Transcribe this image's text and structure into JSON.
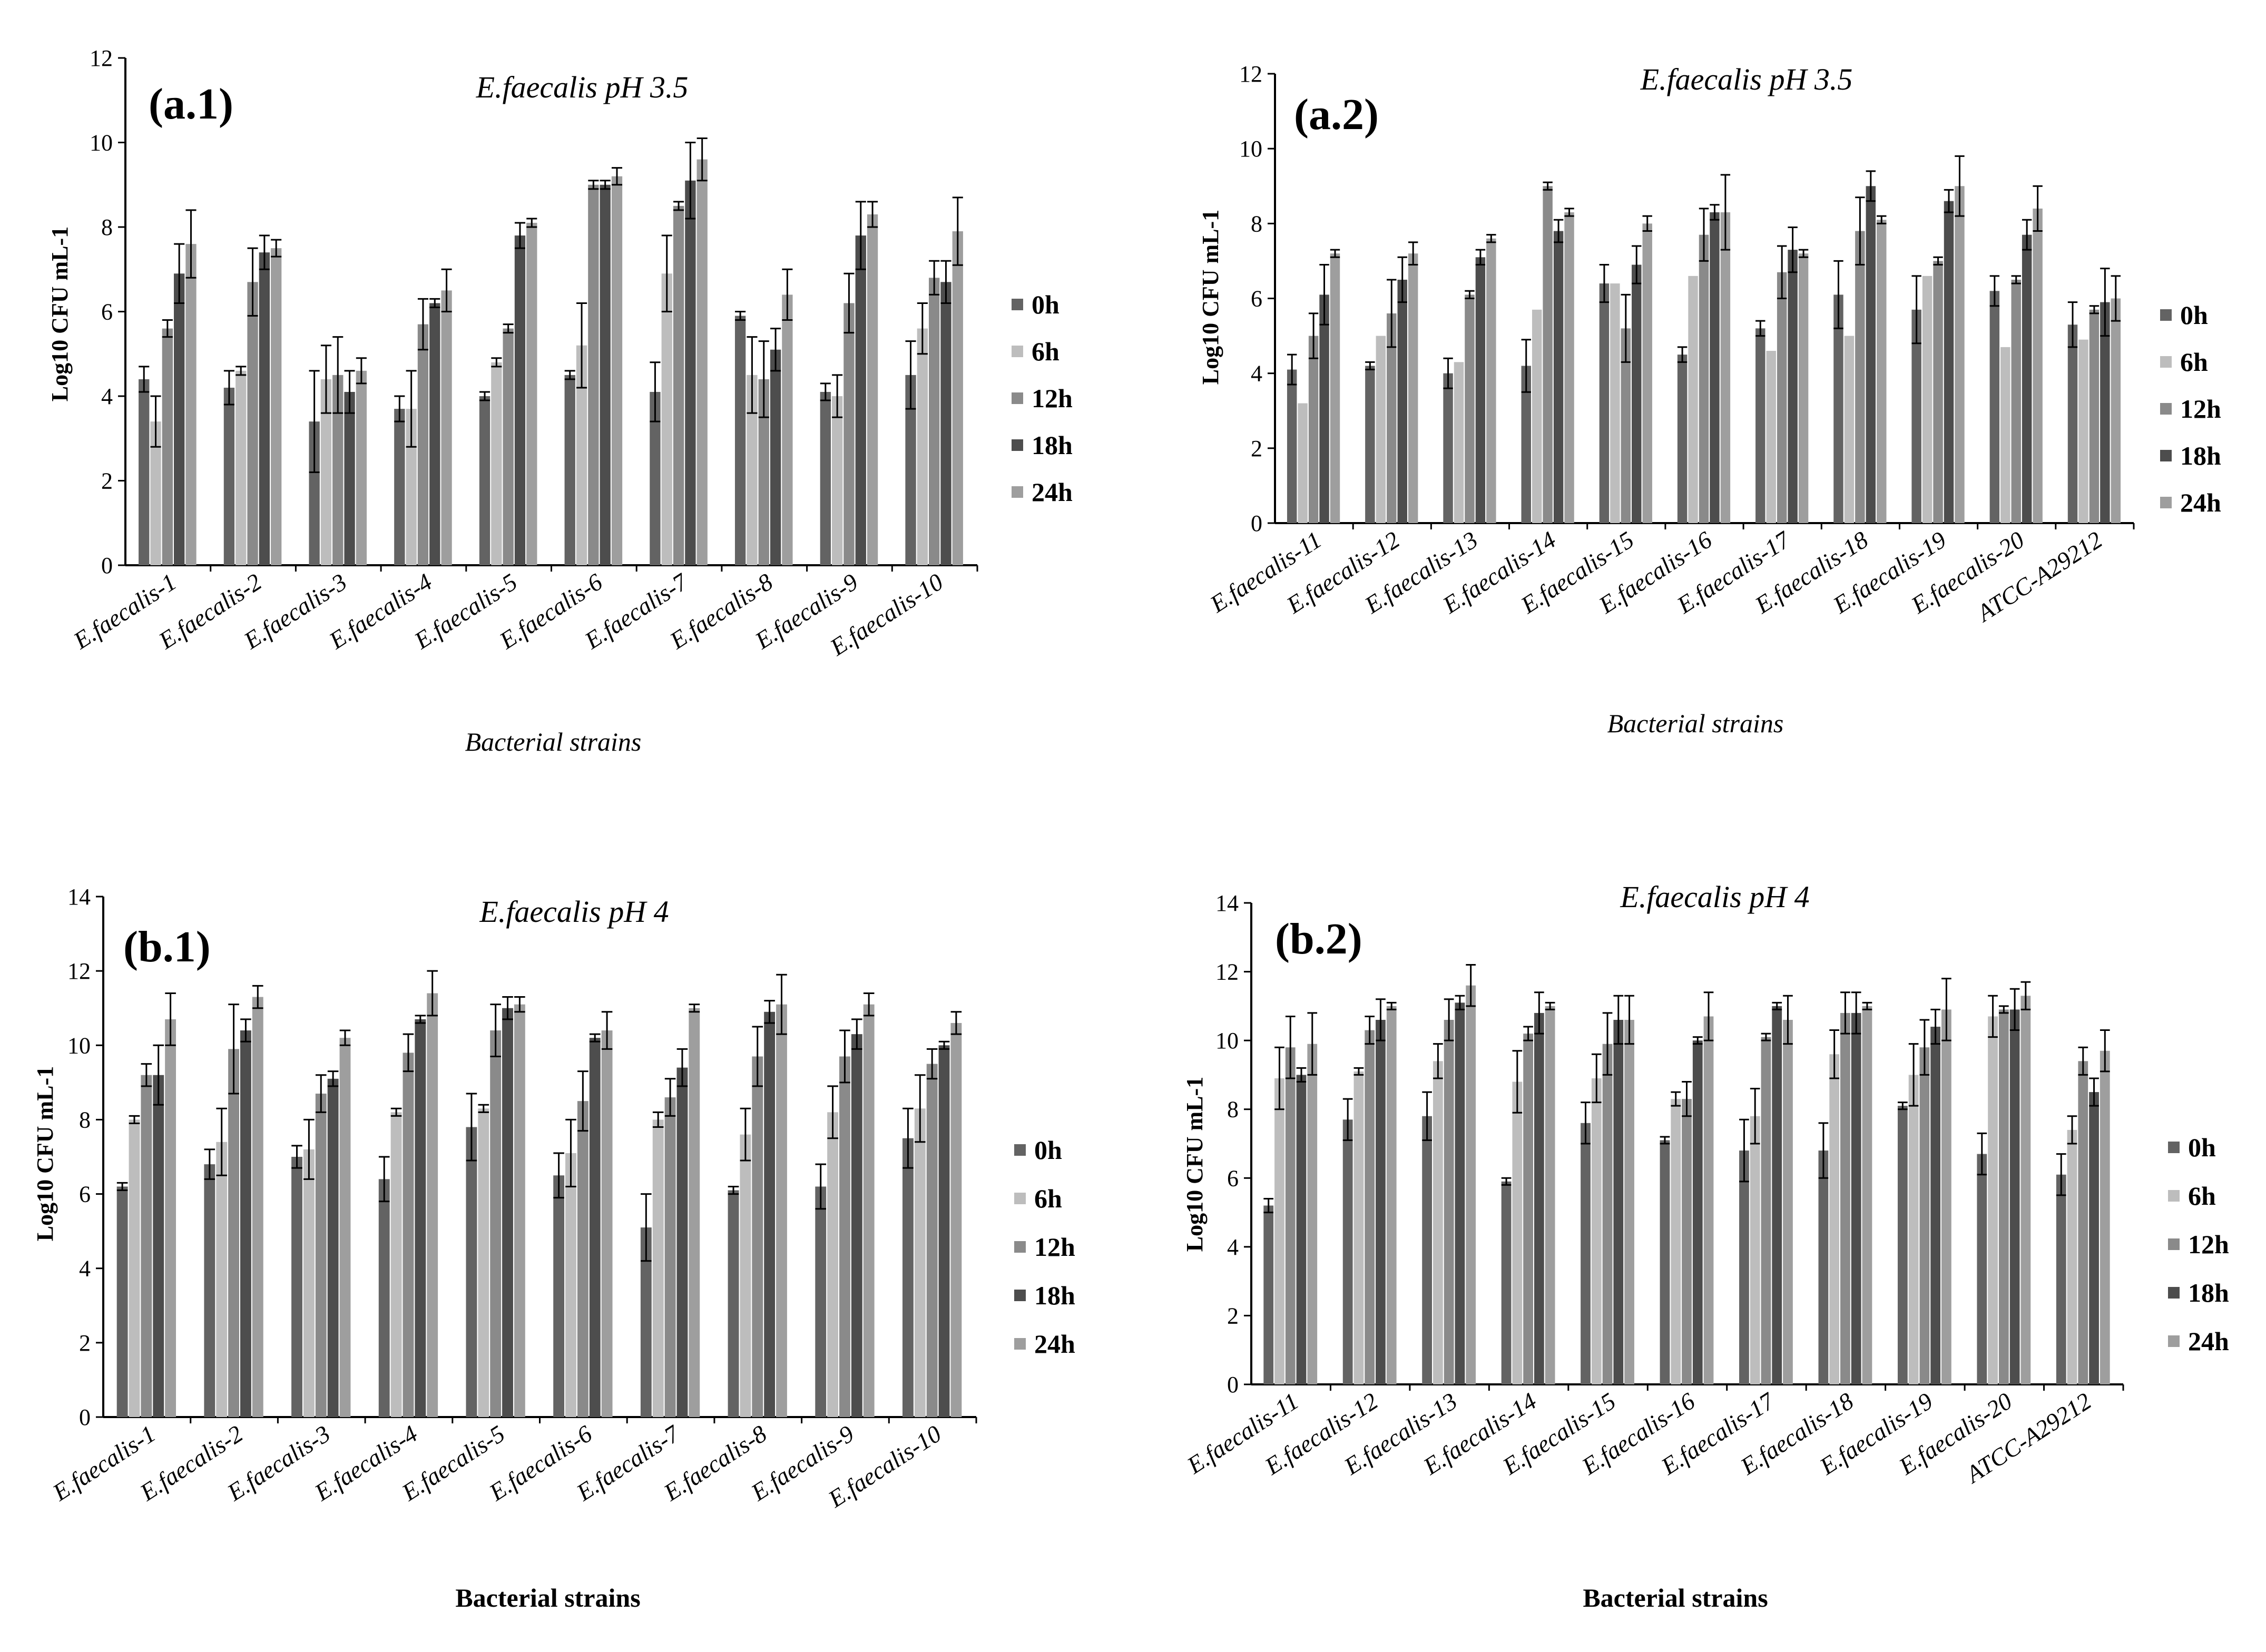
{
  "chart_data": [
    {
      "id": "a1",
      "type": "bar",
      "panel_label": "(a.1)",
      "title": "E.faecalis pH 3.5",
      "xlabel": "Bacterial strains",
      "ylabel": "Log10 CFU mL-1",
      "ylim": [
        0,
        12
      ],
      "yticks": [
        "0",
        "2",
        "4",
        "6",
        "8",
        "10",
        "12"
      ],
      "legend_position": "right",
      "grid": false,
      "categories": [
        "E.faecalis-1",
        "E.faecalis-2",
        "E.faecalis-3",
        "E.faecalis-4",
        "E.faecalis-5",
        "E.faecalis-6",
        "E.faecalis-7",
        "E.faecalis-8",
        "E.faecalis-9",
        "E.faecalis-10"
      ],
      "series": [
        {
          "name": "0h",
          "color": "#636363",
          "values": [
            4.4,
            4.2,
            3.4,
            3.7,
            4.0,
            4.5,
            4.1,
            5.9,
            4.1,
            4.5
          ],
          "errors": [
            0.3,
            0.4,
            1.2,
            0.3,
            0.1,
            0.1,
            0.7,
            0.1,
            0.2,
            0.8
          ]
        },
        {
          "name": "6h",
          "color": "#bdbdbd",
          "values": [
            3.4,
            4.6,
            4.4,
            3.7,
            4.8,
            5.2,
            6.9,
            4.5,
            4.0,
            5.6
          ],
          "errors": [
            0.6,
            0.1,
            0.8,
            0.9,
            0.1,
            1.0,
            0.9,
            0.9,
            0.5,
            0.6
          ]
        },
        {
          "name": "12h",
          "color": "#8a8a8a",
          "values": [
            5.6,
            6.7,
            4.5,
            5.7,
            5.6,
            9.0,
            8.5,
            4.4,
            6.2,
            6.8
          ],
          "errors": [
            0.2,
            0.8,
            0.9,
            0.6,
            0.1,
            0.1,
            0.1,
            0.9,
            0.7,
            0.4
          ]
        },
        {
          "name": "18h",
          "color": "#4d4d4d",
          "values": [
            6.9,
            7.4,
            4.1,
            6.2,
            7.8,
            9.0,
            9.1,
            5.1,
            7.8,
            6.7
          ],
          "errors": [
            0.7,
            0.4,
            0.5,
            0.1,
            0.3,
            0.1,
            0.9,
            0.5,
            0.8,
            0.5
          ]
        },
        {
          "name": "24h",
          "color": "#9e9e9e",
          "values": [
            7.6,
            7.5,
            4.6,
            6.5,
            8.1,
            9.2,
            9.6,
            6.4,
            8.3,
            7.9
          ],
          "errors": [
            0.8,
            0.2,
            0.3,
            0.5,
            0.1,
            0.2,
            0.5,
            0.6,
            0.3,
            0.8
          ]
        }
      ]
    },
    {
      "id": "a2",
      "type": "bar",
      "panel_label": "(a.2)",
      "title": "E.faecalis pH 3.5",
      "xlabel": "Bacterial strains",
      "ylabel": "Log10 CFU mL-1",
      "ylim": [
        0,
        12
      ],
      "yticks": [
        "0",
        "2",
        "4",
        "6",
        "8",
        "10",
        "12"
      ],
      "legend_position": "right",
      "grid": false,
      "categories": [
        "E.faecalis-11",
        "E.faecalis-12",
        "E.faecalis-13",
        "E.faecalis-14",
        "E.faecalis-15",
        "E.faecalis-16",
        "E.faecalis-17",
        "E.faecalis-18",
        "E.faecalis-19",
        "E.faecalis-20",
        "ATCC-A29212"
      ],
      "series": [
        {
          "name": "0h",
          "color": "#636363",
          "values": [
            4.1,
            4.2,
            4.0,
            4.2,
            6.4,
            4.5,
            5.2,
            6.1,
            5.7,
            6.2,
            5.3
          ],
          "errors": [
            0.4,
            0.1,
            0.4,
            0.7,
            0.5,
            0.2,
            0.2,
            0.9,
            0.9,
            0.4,
            0.6
          ]
        },
        {
          "name": "6h",
          "color": "#bdbdbd",
          "values": [
            3.2,
            5.0,
            4.3,
            5.7,
            6.4,
            6.6,
            4.6,
            5.0,
            6.6,
            4.7,
            4.9
          ]
        },
        {
          "name": "12h",
          "color": "#8a8a8a",
          "values": [
            5.0,
            5.6,
            6.1,
            9.0,
            5.2,
            7.7,
            6.7,
            7.8,
            7.0,
            6.5,
            5.7
          ],
          "errors": [
            0.6,
            0.9,
            0.1,
            0.1,
            0.9,
            0.7,
            0.7,
            0.9,
            0.1,
            0.1,
            0.1
          ]
        },
        {
          "name": "18h",
          "color": "#4d4d4d",
          "values": [
            6.1,
            6.5,
            7.1,
            7.8,
            6.9,
            8.3,
            7.3,
            9.0,
            8.6,
            7.7,
            5.9
          ],
          "errors": [
            0.8,
            0.6,
            0.2,
            0.3,
            0.5,
            0.2,
            0.6,
            0.4,
            0.3,
            0.4,
            0.9
          ]
        },
        {
          "name": "24h",
          "color": "#9e9e9e",
          "values": [
            7.2,
            7.2,
            7.6,
            8.3,
            8.0,
            8.3,
            7.2,
            8.1,
            9.0,
            8.4,
            6.0
          ],
          "errors": [
            0.1,
            0.3,
            0.1,
            0.1,
            0.2,
            1.0,
            0.1,
            0.1,
            0.8,
            0.6,
            0.6
          ]
        }
      ]
    },
    {
      "id": "b1",
      "type": "bar",
      "panel_label": "(b.1)",
      "title": "E.faecalis pH 4",
      "xlabel": "Bacterial strains",
      "ylabel": "Log10 CFU mL-1",
      "ylim": [
        0,
        14
      ],
      "yticks": [
        "0",
        "2",
        "4",
        "6",
        "8",
        "10",
        "12",
        "14"
      ],
      "legend_position": "right",
      "grid": false,
      "categories": [
        "E.faecalis-1",
        "E.faecalis-2",
        "E.faecalis-3",
        "E.faecalis-4",
        "E.faecalis-5",
        "E.faecalis-6",
        "E.faecalis-7",
        "E.faecalis-8",
        "E.faecalis-9",
        "E.faecalis-10"
      ],
      "series": [
        {
          "name": "0h",
          "color": "#636363",
          "values": [
            6.2,
            6.8,
            7.0,
            6.4,
            7.8,
            6.5,
            5.1,
            6.1,
            6.2,
            7.5
          ],
          "errors": [
            0.1,
            0.4,
            0.3,
            0.6,
            0.9,
            0.6,
            0.9,
            0.1,
            0.6,
            0.8
          ]
        },
        {
          "name": "6h",
          "color": "#bdbdbd",
          "values": [
            8.0,
            7.4,
            7.2,
            8.2,
            8.3,
            7.1,
            8.0,
            7.6,
            8.2,
            8.3
          ],
          "errors": [
            0.1,
            0.9,
            0.8,
            0.1,
            0.1,
            0.9,
            0.2,
            0.7,
            0.7,
            0.9
          ]
        },
        {
          "name": "12h",
          "color": "#8a8a8a",
          "values": [
            9.2,
            9.9,
            8.7,
            9.8,
            10.4,
            8.5,
            8.6,
            9.7,
            9.7,
            9.5
          ],
          "errors": [
            0.3,
            1.2,
            0.5,
            0.5,
            0.7,
            0.8,
            0.5,
            0.8,
            0.7,
            0.4
          ]
        },
        {
          "name": "18h",
          "color": "#4d4d4d",
          "values": [
            9.2,
            10.4,
            9.1,
            10.7,
            11.0,
            10.2,
            9.4,
            10.9,
            10.3,
            10.0
          ],
          "errors": [
            0.8,
            0.3,
            0.2,
            0.1,
            0.3,
            0.1,
            0.5,
            0.3,
            0.4,
            0.1
          ]
        },
        {
          "name": "24h",
          "color": "#9e9e9e",
          "values": [
            10.7,
            11.3,
            10.2,
            11.4,
            11.1,
            10.4,
            11.0,
            11.1,
            11.1,
            10.6
          ],
          "errors": [
            0.7,
            0.3,
            0.2,
            0.6,
            0.2,
            0.5,
            0.1,
            0.8,
            0.3,
            0.3
          ]
        }
      ]
    },
    {
      "id": "b2",
      "type": "bar",
      "panel_label": "(b.2)",
      "title": "E.faecalis pH 4",
      "xlabel": "Bacterial strains",
      "ylabel": "Log10 CFU mL-1",
      "ylim": [
        0,
        14
      ],
      "yticks": [
        "0",
        "2",
        "4",
        "6",
        "8",
        "10",
        "12",
        "14"
      ],
      "legend_position": "right",
      "grid": false,
      "categories": [
        "E.faecalis-11",
        "E.faecalis-12",
        "E.faecalis-13",
        "E.faecalis-14",
        "E.faecalis-15",
        "E.faecalis-16",
        "E.faecalis-17",
        "E.faecalis-18",
        "E.faecalis-19",
        "E.faecalis-20",
        "ATCC-A29212"
      ],
      "series": [
        {
          "name": "0h",
          "color": "#636363",
          "values": [
            5.2,
            7.7,
            7.8,
            5.9,
            7.6,
            7.1,
            6.8,
            6.8,
            8.1,
            6.7,
            6.1
          ],
          "errors": [
            0.2,
            0.6,
            0.7,
            0.1,
            0.6,
            0.1,
            0.9,
            0.8,
            0.1,
            0.6,
            0.6
          ]
        },
        {
          "name": "6h",
          "color": "#bdbdbd",
          "values": [
            8.9,
            9.1,
            9.4,
            8.8,
            8.9,
            8.3,
            7.8,
            9.6,
            9.0,
            10.7,
            7.4
          ],
          "errors": [
            0.9,
            0.1,
            0.5,
            0.9,
            0.7,
            0.2,
            0.8,
            0.7,
            0.9,
            0.6,
            0.4
          ]
        },
        {
          "name": "12h",
          "color": "#8a8a8a",
          "values": [
            9.8,
            10.3,
            10.6,
            10.2,
            9.9,
            8.3,
            10.1,
            10.8,
            9.8,
            10.9,
            9.4
          ],
          "errors": [
            0.9,
            0.4,
            0.6,
            0.2,
            0.9,
            0.5,
            0.1,
            0.6,
            0.8,
            0.1,
            0.4
          ]
        },
        {
          "name": "18h",
          "color": "#4d4d4d",
          "values": [
            9.0,
            10.6,
            11.1,
            10.8,
            10.6,
            10.0,
            11.0,
            10.8,
            10.4,
            10.9,
            8.5
          ],
          "errors": [
            0.2,
            0.6,
            0.2,
            0.6,
            0.7,
            0.1,
            0.1,
            0.6,
            0.5,
            0.6,
            0.4
          ]
        },
        {
          "name": "24h",
          "color": "#9e9e9e",
          "values": [
            9.9,
            11.0,
            11.6,
            11.0,
            10.6,
            10.7,
            10.6,
            11.0,
            10.9,
            11.3,
            9.7
          ],
          "errors": [
            0.9,
            0.1,
            0.6,
            0.1,
            0.7,
            0.7,
            0.7,
            0.1,
            0.9,
            0.4,
            0.6
          ]
        }
      ]
    }
  ]
}
